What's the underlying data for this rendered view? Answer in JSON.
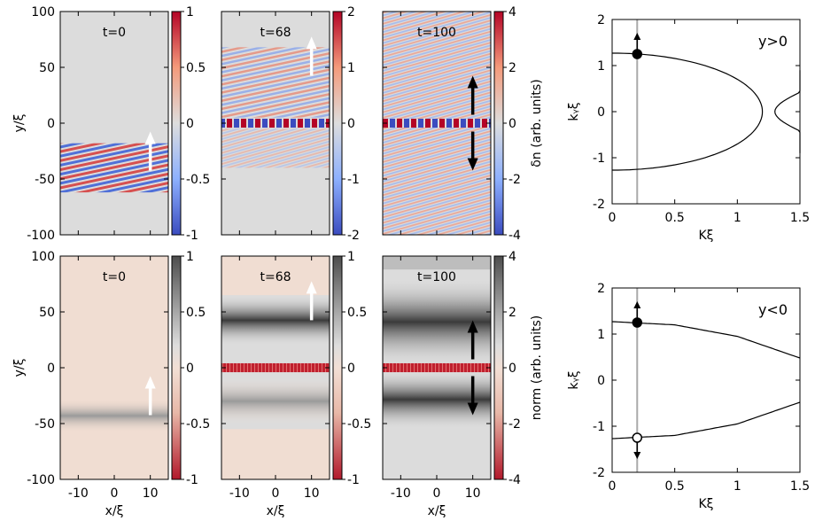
{
  "chart_data": [
    {
      "type": "heatmap",
      "row": "top",
      "ylabel": "y/ξ",
      "yticks": [
        100,
        50,
        0,
        -50,
        -100
      ],
      "xticks": [
        -10,
        0,
        10
      ],
      "xlim": [
        -15,
        15
      ],
      "ylim": [
        -100,
        100
      ],
      "colorbar_label": "δn (arb. units)",
      "panels": [
        {
          "title": "t=0",
          "cbar_ticks": [
            "1",
            "0.5",
            "0",
            "-0.5",
            "-1"
          ],
          "arrows": [
            {
              "x": 10,
              "y": -25,
              "dir": "up",
              "color": "#ffffff"
            }
          ]
        },
        {
          "title": "t=68",
          "cbar_ticks": [
            "2",
            "1",
            "0",
            "-1",
            "-2"
          ],
          "arrows": [
            {
              "x": 10,
              "y": 60,
              "dir": "up",
              "color": "#ffffff"
            }
          ]
        },
        {
          "title": "t=100",
          "cbar_ticks": [
            "4",
            "2",
            "0",
            "-2",
            "-4"
          ],
          "arrows": [
            {
              "x": 10,
              "y": 25,
              "dir": "up",
              "color": "#000000"
            },
            {
              "x": 10,
              "y": -25,
              "dir": "down",
              "color": "#000000"
            }
          ]
        }
      ]
    },
    {
      "type": "heatmap",
      "row": "bottom",
      "ylabel": "y/ξ",
      "xlabel": "x/ξ",
      "yticks": [
        100,
        50,
        0,
        -50,
        -100
      ],
      "xticks": [
        -10,
        0,
        10
      ],
      "xlim": [
        -15,
        15
      ],
      "ylim": [
        -100,
        100
      ],
      "colorbar_label": "norm (arb. units)",
      "panels": [
        {
          "title": "t=0",
          "cbar_ticks": [
            "1",
            "0.5",
            "0",
            "-0.5",
            "-1"
          ],
          "arrows": [
            {
              "x": 10,
              "y": -25,
              "dir": "up",
              "color": "#ffffff"
            }
          ]
        },
        {
          "title": "t=68",
          "cbar_ticks": [
            "1",
            "0.5",
            "0",
            "-0.5",
            "-1"
          ],
          "arrows": [
            {
              "x": 10,
              "y": 60,
              "dir": "up",
              "color": "#ffffff"
            }
          ]
        },
        {
          "title": "t=100",
          "cbar_ticks": [
            "4",
            "2",
            "0",
            "-2",
            "-4"
          ],
          "arrows": [
            {
              "x": 10,
              "y": 25,
              "dir": "up",
              "color": "#000000"
            },
            {
              "x": 10,
              "y": -25,
              "dir": "down",
              "color": "#000000"
            }
          ]
        }
      ]
    },
    {
      "type": "line",
      "label": "y>0",
      "xlabel": "Kξ",
      "ylabel": "kᵧξ",
      "xlim": [
        0,
        1.5
      ],
      "ylim": [
        -2,
        2
      ],
      "xticks": [
        "0",
        "0.5",
        "1",
        "1.5"
      ],
      "yticks": [
        "2",
        "1",
        "0",
        "-1",
        "-2"
      ],
      "vline_x": 0.2,
      "curves": [
        {
          "shape": "ellipse",
          "center": [
            0,
            0
          ],
          "semi_axes": [
            1.2,
            1.27
          ]
        },
        {
          "shape": "hyperbola-branch",
          "vertex_x": 1.3,
          "opens": "right"
        }
      ],
      "markers": [
        {
          "x": 0.2,
          "y": 1.25,
          "filled": true,
          "arrow": "up"
        }
      ]
    },
    {
      "type": "line",
      "label": "y<0",
      "xlabel": "Kξ",
      "ylabel": "kᵧξ",
      "xlim": [
        0,
        1.5
      ],
      "ylim": [
        -2,
        2
      ],
      "xticks": [
        "0",
        "0.5",
        "1",
        "1.5"
      ],
      "yticks": [
        "2",
        "1",
        "0",
        "-1",
        "-2"
      ],
      "vline_x": 0.2,
      "curves": [
        {
          "shape": "upper-arc",
          "points": [
            [
              0,
              1.27
            ],
            [
              0.5,
              1.2
            ],
            [
              1.0,
              0.95
            ],
            [
              1.5,
              0.48
            ]
          ]
        },
        {
          "shape": "lower-arc",
          "points": [
            [
              0,
              -1.27
            ],
            [
              0.5,
              -1.2
            ],
            [
              1.0,
              -0.95
            ],
            [
              1.5,
              -0.48
            ]
          ]
        }
      ],
      "markers": [
        {
          "x": 0.2,
          "y": 1.25,
          "filled": true,
          "arrow": "up"
        },
        {
          "x": 0.2,
          "y": -1.25,
          "filled": false,
          "arrow": "down"
        }
      ]
    }
  ]
}
